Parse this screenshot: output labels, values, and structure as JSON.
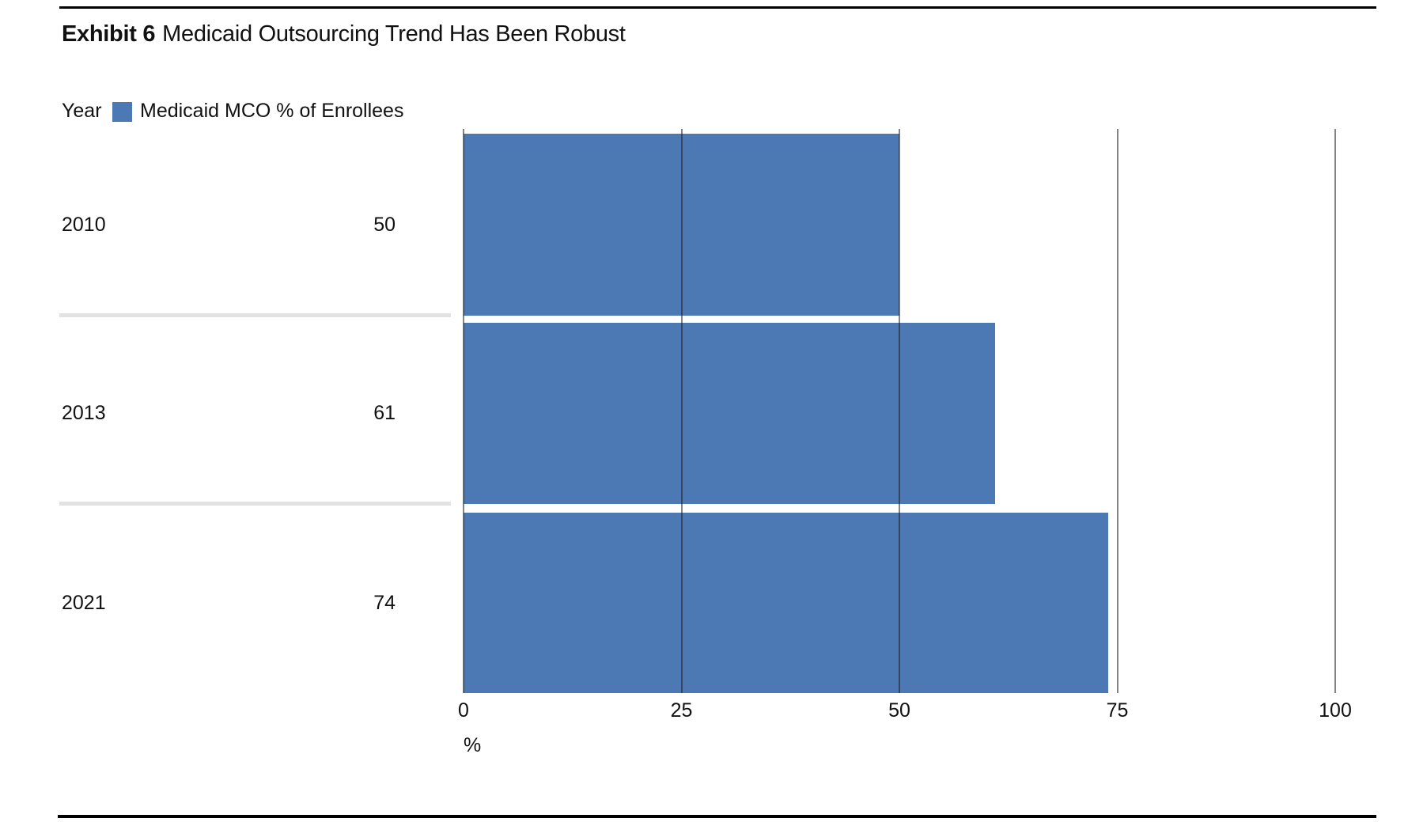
{
  "page": {
    "title_exhibit": "Exhibit 6",
    "title_text": "Medicaid Outsourcing Trend Has Been Robust"
  },
  "legend": {
    "year_header": "Year",
    "series_label": "Medicaid MCO % of Enrollees"
  },
  "chart_data": {
    "type": "bar",
    "orientation": "horizontal",
    "title": "Exhibit 6 Medicaid Outsourcing Trend Has Been Robust",
    "categories": [
      "2010",
      "2013",
      "2021"
    ],
    "series": [
      {
        "name": "Medicaid MCO % of Enrollees",
        "values": [
          50,
          61,
          74
        ]
      }
    ],
    "value_labels": [
      "50",
      "61",
      "74"
    ],
    "xlabel": "%",
    "xlim": [
      0,
      100
    ],
    "xticks": [
      0,
      25,
      50,
      75,
      100
    ],
    "grid": true,
    "legend_position": "top-left",
    "bar_color": "#4C78B4",
    "gridline_color": "rgba(30,30,30,0.55)",
    "separator_color": "#e2e2e2",
    "rule_color": "#000000"
  }
}
